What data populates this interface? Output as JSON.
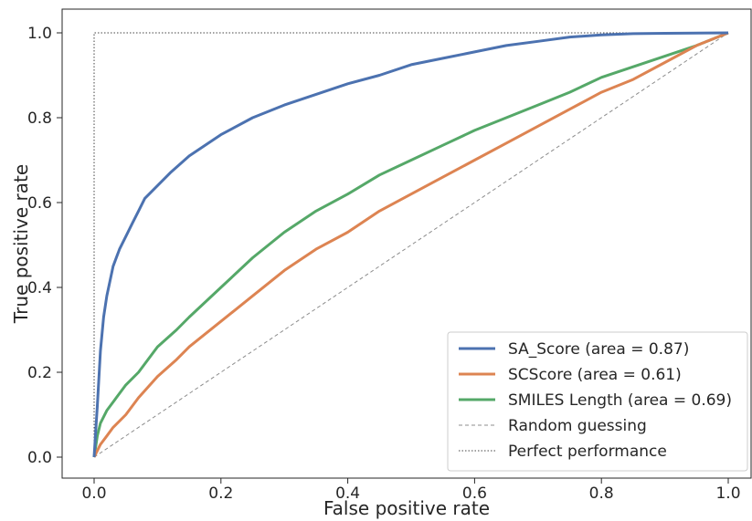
{
  "chart_data": {
    "type": "line",
    "title": "",
    "xlabel": "False positive rate",
    "ylabel": "True positive rate",
    "xlim": [
      -0.05,
      1.03
    ],
    "ylim": [
      -0.05,
      1.05
    ],
    "xticks": [
      "0.0",
      "0.2",
      "0.4",
      "0.6",
      "0.8",
      "1.0"
    ],
    "yticks": [
      "0.0",
      "0.2",
      "0.4",
      "0.6",
      "0.8",
      "1.0"
    ],
    "grid": false,
    "legend_position": "lower-right",
    "series": [
      {
        "name": "SA_Score (area = 0.87)",
        "color": "#4c72b0",
        "style": "solid",
        "points": [
          [
            0,
            0
          ],
          [
            0.002,
            0.05
          ],
          [
            0.005,
            0.12
          ],
          [
            0.01,
            0.25
          ],
          [
            0.015,
            0.33
          ],
          [
            0.02,
            0.38
          ],
          [
            0.03,
            0.45
          ],
          [
            0.04,
            0.49
          ],
          [
            0.05,
            0.52
          ],
          [
            0.06,
            0.55
          ],
          [
            0.07,
            0.58
          ],
          [
            0.08,
            0.61
          ],
          [
            0.1,
            0.64
          ],
          [
            0.12,
            0.67
          ],
          [
            0.15,
            0.71
          ],
          [
            0.2,
            0.76
          ],
          [
            0.25,
            0.8
          ],
          [
            0.3,
            0.83
          ],
          [
            0.35,
            0.855
          ],
          [
            0.4,
            0.88
          ],
          [
            0.45,
            0.9
          ],
          [
            0.5,
            0.925
          ],
          [
            0.55,
            0.94
          ],
          [
            0.6,
            0.955
          ],
          [
            0.65,
            0.97
          ],
          [
            0.7,
            0.98
          ],
          [
            0.75,
            0.99
          ],
          [
            0.8,
            0.995
          ],
          [
            0.85,
            0.998
          ],
          [
            0.9,
            0.999
          ],
          [
            1.0,
            1.0
          ]
        ]
      },
      {
        "name": "SCScore (area = 0.61)",
        "color": "#dd8452",
        "style": "solid",
        "points": [
          [
            0,
            0
          ],
          [
            0.01,
            0.03
          ],
          [
            0.02,
            0.05
          ],
          [
            0.03,
            0.07
          ],
          [
            0.05,
            0.1
          ],
          [
            0.07,
            0.14
          ],
          [
            0.1,
            0.19
          ],
          [
            0.13,
            0.23
          ],
          [
            0.15,
            0.26
          ],
          [
            0.2,
            0.32
          ],
          [
            0.25,
            0.38
          ],
          [
            0.3,
            0.44
          ],
          [
            0.35,
            0.49
          ],
          [
            0.4,
            0.53
          ],
          [
            0.45,
            0.58
          ],
          [
            0.5,
            0.62
          ],
          [
            0.55,
            0.66
          ],
          [
            0.6,
            0.7
          ],
          [
            0.65,
            0.74
          ],
          [
            0.7,
            0.78
          ],
          [
            0.75,
            0.82
          ],
          [
            0.8,
            0.86
          ],
          [
            0.85,
            0.89
          ],
          [
            0.9,
            0.93
          ],
          [
            0.95,
            0.97
          ],
          [
            1.0,
            1.0
          ]
        ]
      },
      {
        "name": "SMILES Length (area = 0.69)",
        "color": "#55a868",
        "style": "solid",
        "points": [
          [
            0,
            0
          ],
          [
            0.005,
            0.05
          ],
          [
            0.01,
            0.08
          ],
          [
            0.02,
            0.11
          ],
          [
            0.03,
            0.13
          ],
          [
            0.05,
            0.17
          ],
          [
            0.07,
            0.2
          ],
          [
            0.1,
            0.26
          ],
          [
            0.13,
            0.3
          ],
          [
            0.15,
            0.33
          ],
          [
            0.2,
            0.4
          ],
          [
            0.25,
            0.47
          ],
          [
            0.3,
            0.53
          ],
          [
            0.35,
            0.58
          ],
          [
            0.4,
            0.62
          ],
          [
            0.45,
            0.665
          ],
          [
            0.5,
            0.7
          ],
          [
            0.55,
            0.735
          ],
          [
            0.6,
            0.77
          ],
          [
            0.65,
            0.8
          ],
          [
            0.7,
            0.83
          ],
          [
            0.75,
            0.86
          ],
          [
            0.8,
            0.895
          ],
          [
            0.85,
            0.92
          ],
          [
            0.9,
            0.945
          ],
          [
            0.95,
            0.97
          ],
          [
            1.0,
            1.0
          ]
        ]
      },
      {
        "name": "Random guessing",
        "color": "#8c8c8c",
        "style": "dashed",
        "points": [
          [
            0,
            0
          ],
          [
            1,
            1
          ]
        ]
      },
      {
        "name": "Perfect performance",
        "color": "#444444",
        "style": "dotted",
        "points": [
          [
            0,
            0
          ],
          [
            0,
            1
          ],
          [
            1,
            1
          ]
        ]
      }
    ]
  }
}
